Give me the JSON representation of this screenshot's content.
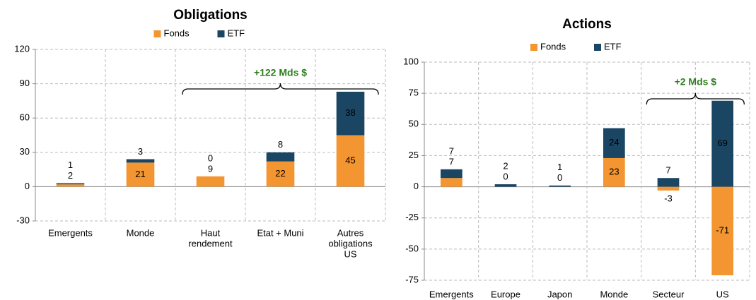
{
  "chart_data": [
    {
      "type": "bar",
      "stacked": true,
      "title": "Obligations",
      "categories": [
        "Emergents",
        "Monde",
        [
          "Haut",
          "rendement"
        ],
        "Etat + Muni",
        [
          "Autres",
          "obligations",
          "US"
        ]
      ],
      "series": [
        {
          "name": "Fonds",
          "color": "#f39530",
          "values": [
            2,
            21,
            9,
            22,
            45
          ]
        },
        {
          "name": "ETF",
          "color": "#1a4563",
          "values": [
            1,
            3,
            0,
            8,
            38
          ]
        }
      ],
      "ylim": [
        -30,
        120
      ],
      "yticks": [
        -30,
        0,
        30,
        60,
        90,
        120
      ],
      "grid": true,
      "annotation": "+122 Mds $"
    },
    {
      "type": "bar",
      "stacked": true,
      "title": "Actions",
      "categories": [
        "Emergents",
        "Europe",
        "Japon",
        "Monde",
        "Secteur",
        "US"
      ],
      "series": [
        {
          "name": "Fonds",
          "color": "#f39530",
          "values": [
            7,
            0,
            0,
            23,
            -3,
            -71
          ]
        },
        {
          "name": "ETF",
          "color": "#1a4563",
          "values": [
            7,
            2,
            1,
            24,
            7,
            69
          ]
        }
      ],
      "ylim": [
        -75,
        100
      ],
      "yticks": [
        -75,
        -50,
        -25,
        0,
        25,
        50,
        75,
        100
      ],
      "grid": true,
      "annotation": "+2 Mds $"
    }
  ]
}
